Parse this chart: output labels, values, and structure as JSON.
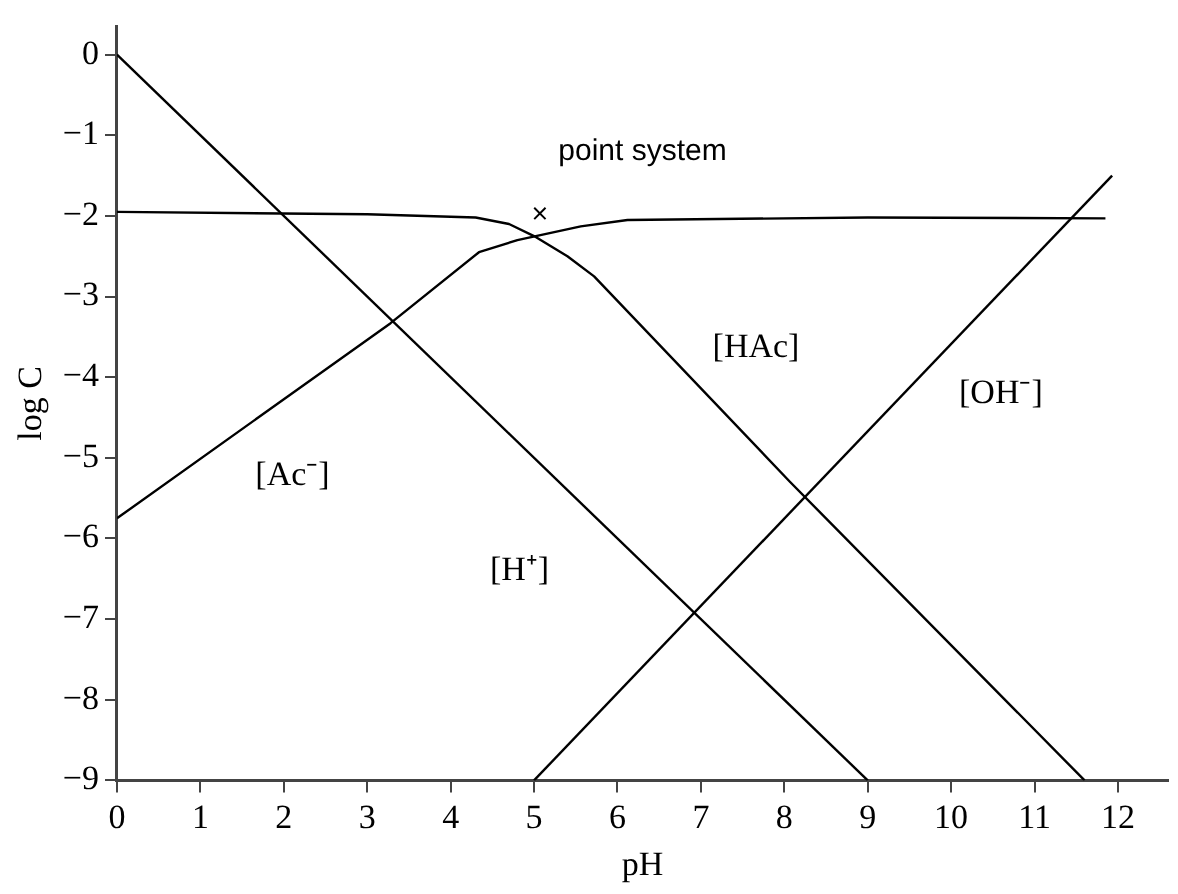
{
  "chart_data": {
    "type": "line",
    "xlabel": "pH",
    "ylabel": "log C",
    "xlim": [
      0,
      12.6
    ],
    "ylim": [
      -9,
      0.35
    ],
    "xticks": [
      0,
      1,
      2,
      3,
      4,
      5,
      6,
      7,
      8,
      9,
      10,
      11,
      12
    ],
    "yticks": [
      -9,
      -8,
      -7,
      -6,
      -5,
      -4,
      -3,
      -2,
      -1,
      0
    ],
    "grid": false,
    "legend": false,
    "marker": "none",
    "line_style": "solid",
    "series": [
      {
        "name": "[H⁺]",
        "color": "#000000",
        "x": [
          0,
          9
        ],
        "values": [
          0,
          -9
        ]
      },
      {
        "name": "[OH⁻]",
        "color": "#000000",
        "x": [
          5,
          11.93
        ],
        "values": [
          -9,
          -1.5
        ]
      },
      {
        "name": "[HAc]",
        "color": "#000000",
        "x": [
          0,
          3,
          4.3,
          4.7,
          5,
          5.4,
          5.72,
          8.07,
          11.6
        ],
        "values": [
          -1.95,
          -1.98,
          -2.02,
          -2.1,
          -2.25,
          -2.5,
          -2.75,
          -5.3,
          -9
        ]
      },
      {
        "name": "[Ac⁻]",
        "color": "#000000",
        "x": [
          0,
          3.28,
          4.34,
          4.8,
          5.56,
          6.12,
          9,
          11.85
        ],
        "values": [
          -5.75,
          -3.33,
          -2.45,
          -2.3,
          -2.13,
          -2.05,
          -2.02,
          -2.03
        ]
      },
      {
        "name": "point system",
        "type": "scatter",
        "marker": "cross",
        "color": "#000000",
        "x": [
          5.07
        ],
        "values": [
          -1.97
        ]
      }
    ]
  }
}
